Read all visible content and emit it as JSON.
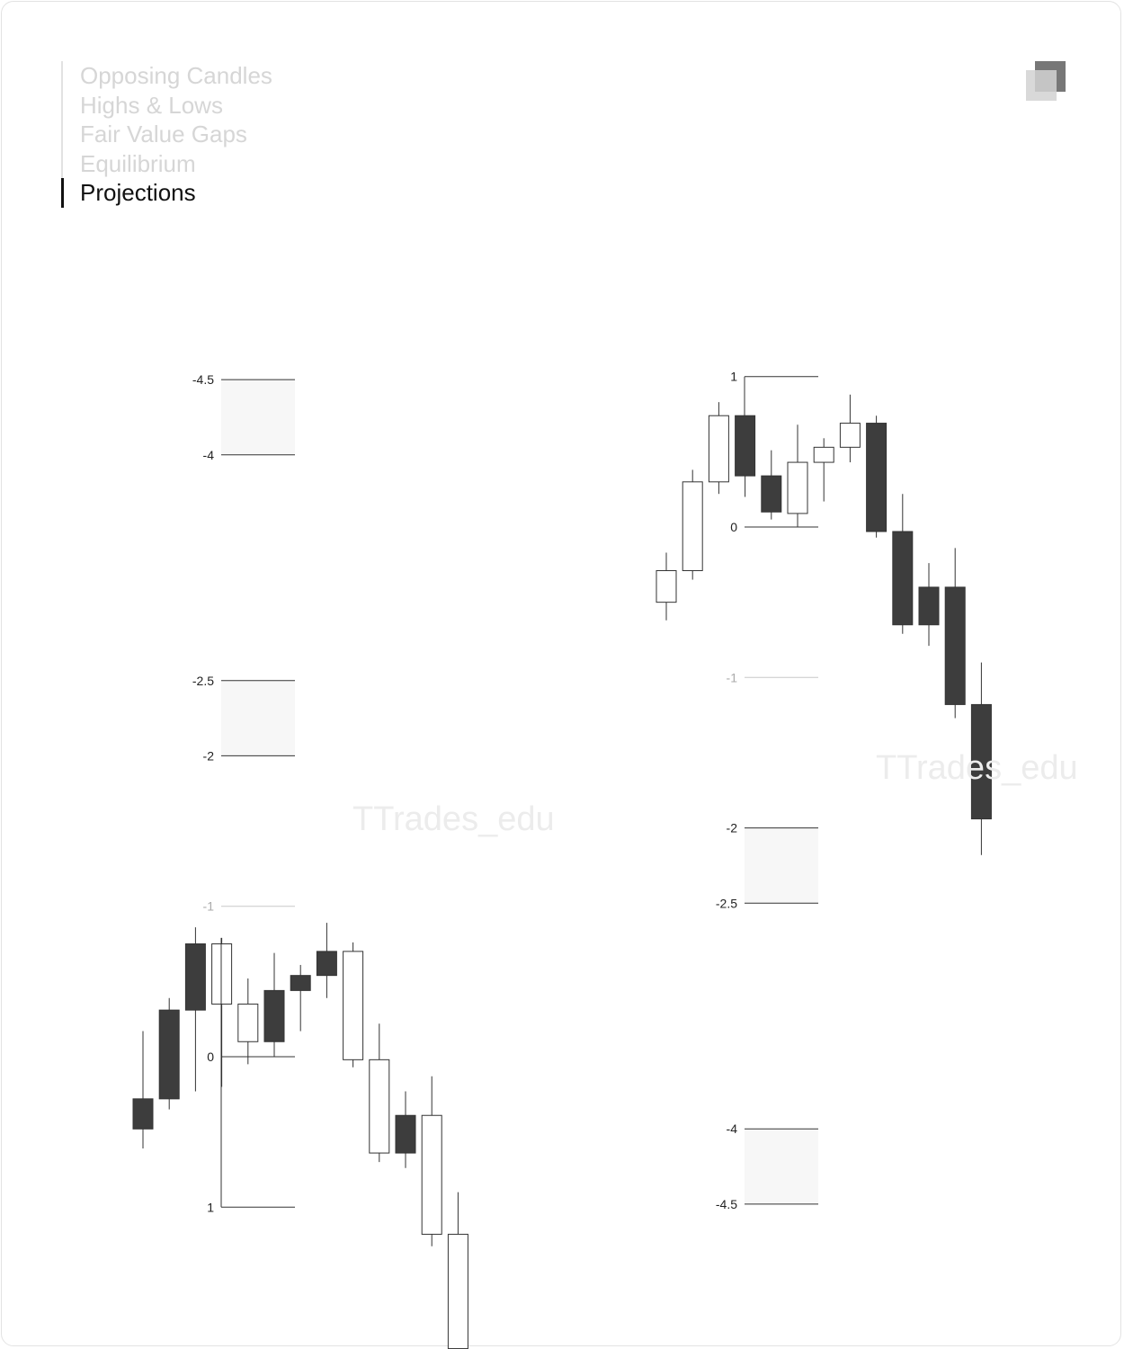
{
  "nav": {
    "items": [
      {
        "label": "Opposing Candles",
        "active": false
      },
      {
        "label": "Highs & Lows",
        "active": false
      },
      {
        "label": "Fair Value Gaps",
        "active": false
      },
      {
        "label": "Equilibrium",
        "active": false
      },
      {
        "label": "Projections",
        "active": true
      }
    ]
  },
  "watermark": "TTrades_edu",
  "colors": {
    "bear_fill": "#3d3d3d",
    "bull_fill": "#ffffff",
    "wick": "#333333",
    "level_line": "#333333",
    "faint_line": "#c8c8c8",
    "zone_fill": "#f7f7f7"
  },
  "chart_data": [
    {
      "type": "candlestick",
      "name": "",
      "y_unit": "projection level",
      "levels": [
        {
          "label": "-4.5",
          "value": -4.5,
          "faint": false
        },
        {
          "label": "-4",
          "value": -4,
          "faint": false
        },
        {
          "label": "-2.5",
          "value": -2.5,
          "faint": false
        },
        {
          "label": "-2",
          "value": -2,
          "faint": false
        },
        {
          "label": "-1",
          "value": -1,
          "faint": true
        },
        {
          "label": "0",
          "value": 0,
          "faint": false
        },
        {
          "label": "1",
          "value": 1,
          "faint": false
        }
      ],
      "zones": [
        [
          -4.5,
          -4
        ],
        [
          -2.5,
          -2
        ]
      ],
      "candles": [
        {
          "o": 0.48,
          "c": 0.28,
          "h": 0.61,
          "l": -0.17
        },
        {
          "o": 0.28,
          "c": -0.31,
          "h": 0.35,
          "l": -0.39
        },
        {
          "o": -0.31,
          "c": -0.75,
          "h": 0.23,
          "l": -0.86
        },
        {
          "o": -0.75,
          "c": -0.35,
          "h": 0.2,
          "l": -0.79
        },
        {
          "o": -0.35,
          "c": -0.1,
          "h": 0.05,
          "l": -0.52
        },
        {
          "o": -0.1,
          "c": -0.44,
          "h": 0.0,
          "l": -0.69
        },
        {
          "o": -0.44,
          "c": -0.54,
          "h": -0.17,
          "l": -0.61
        },
        {
          "o": -0.54,
          "c": -0.7,
          "h": -0.39,
          "l": -0.89
        },
        {
          "o": -0.7,
          "c": 0.02,
          "h": 0.07,
          "l": -0.76
        },
        {
          "o": 0.02,
          "c": 0.64,
          "h": 0.7,
          "l": -0.22
        },
        {
          "o": 0.64,
          "c": 0.39,
          "h": 0.74,
          "l": 0.23
        },
        {
          "o": 0.39,
          "c": 1.18,
          "h": 1.26,
          "l": 0.13
        },
        {
          "o": 1.18,
          "c": 1.94,
          "h": 2.19,
          "l": 0.9
        }
      ]
    },
    {
      "type": "candlestick",
      "name": "",
      "y_unit": "projection level",
      "levels": [
        {
          "label": "1",
          "value": 1,
          "faint": false
        },
        {
          "label": "0",
          "value": 0,
          "faint": false
        },
        {
          "label": "-1",
          "value": -1,
          "faint": true
        },
        {
          "label": "-2",
          "value": -2,
          "faint": false
        },
        {
          "label": "-2.5",
          "value": -2.5,
          "faint": false
        },
        {
          "label": "-4",
          "value": -4,
          "faint": false
        },
        {
          "label": "-4.5",
          "value": -4.5,
          "faint": false
        }
      ],
      "zones": [
        [
          -2,
          -2.5
        ],
        [
          -4,
          -4.5
        ]
      ],
      "candles": [
        {
          "o": -0.5,
          "c": -0.29,
          "h": -0.17,
          "l": -0.62
        },
        {
          "o": -0.29,
          "c": 0.3,
          "h": 0.38,
          "l": -0.35
        },
        {
          "o": 0.3,
          "c": 0.74,
          "h": 0.83,
          "l": 0.22
        },
        {
          "o": 0.74,
          "c": 0.34,
          "h": 0.74,
          "l": 0.2
        },
        {
          "o": 0.34,
          "c": 0.1,
          "h": 0.51,
          "l": 0.05
        },
        {
          "o": 0.09,
          "c": 0.43,
          "h": 0.68,
          "l": 0.0
        },
        {
          "o": 0.43,
          "c": 0.53,
          "h": 0.59,
          "l": 0.17
        },
        {
          "o": 0.53,
          "c": 0.69,
          "h": 0.88,
          "l": 0.43
        },
        {
          "o": 0.69,
          "c": -0.03,
          "h": 0.74,
          "l": -0.07
        },
        {
          "o": -0.03,
          "c": -0.65,
          "h": 0.22,
          "l": -0.71
        },
        {
          "o": -0.4,
          "c": -0.65,
          "h": -0.24,
          "l": -0.79
        },
        {
          "o": -0.4,
          "c": -1.18,
          "h": -0.14,
          "l": -1.27
        },
        {
          "o": -1.18,
          "c": -1.94,
          "h": -0.9,
          "l": -2.18
        }
      ]
    }
  ]
}
